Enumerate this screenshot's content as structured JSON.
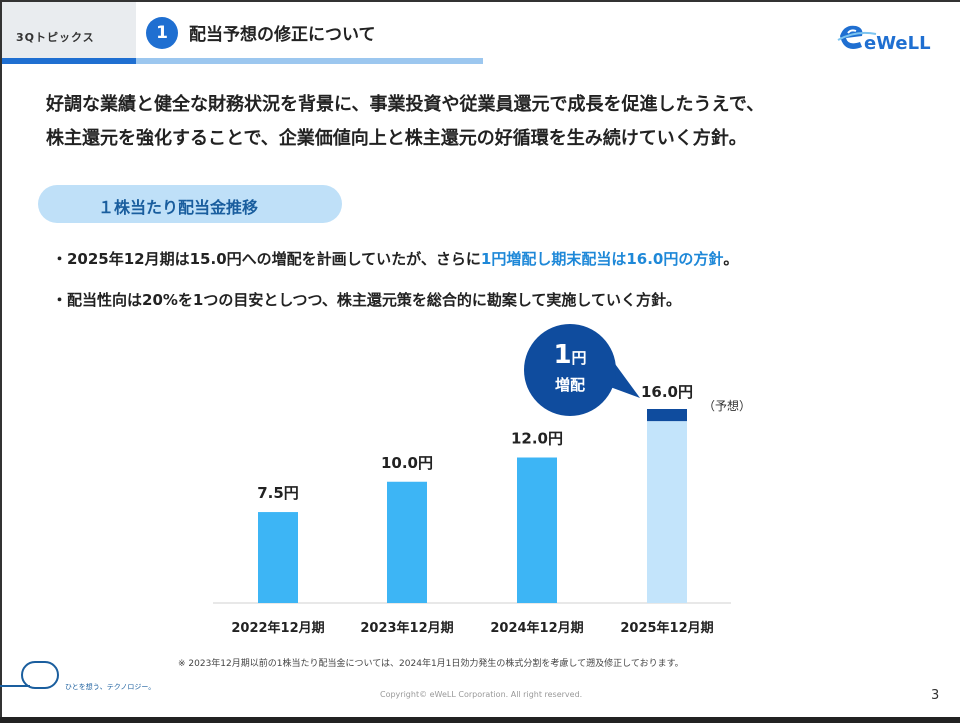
{
  "header": {
    "topic_tab": "3Qトピックス",
    "section_number": "1",
    "section_title": "配当予想の修正について"
  },
  "lead_lines": [
    "好調な業績と健全な財務状況を背景に、事業投資や従業員還元で成長を促進したうえで、",
    "株主還元を強化することで、企業価値向上と株主還元の好循環を生み続けていく方針。"
  ],
  "pill_label": "１株当たり配当金推移",
  "bullets": {
    "b1_prefix": "・2025年12月期は15.0円への増配を計画していたが、さらに",
    "b1_highlight": "1円増配し期末配当は16.0円の方針",
    "b1_suffix": "。",
    "b2": "・配当性向は20%を1つの目安としつつ、株主還元策を総合的に勘案して実施していく方針。"
  },
  "chart_data": {
    "type": "bar",
    "title": "１株当たり配当金推移",
    "categories": [
      "2022年12月期",
      "2023年12月期",
      "2024年12月期",
      "2025年12月期"
    ],
    "values": [
      7.5,
      10.0,
      12.0,
      16.0
    ],
    "value_labels": [
      "7.5円",
      "10.0円",
      "12.0円",
      "16.0円"
    ],
    "forecast_base": 15.0,
    "forecast_increase": 1.0,
    "forecast_note": "（予想）",
    "callout_line1": "1",
    "callout_unit": "円",
    "callout_line2": "増配",
    "ylim": [
      0,
      16
    ],
    "colors": {
      "actual": "#3db5f5",
      "forecast": "#c3e4fb",
      "increase": "#0f4c9e",
      "callout": "#0f4c9e"
    }
  },
  "footnote": "※ 2023年12月期以前の1株当たり配当金については、2024年1月1日効力発生の株式分割を考慮して遡及修正しております。",
  "copyright": "Copyright© eWeLL Corporation. All right reserved.",
  "page_number": "3",
  "tagline": "ひとを想う、テクノロジー。",
  "logo_text": "eWeLL"
}
